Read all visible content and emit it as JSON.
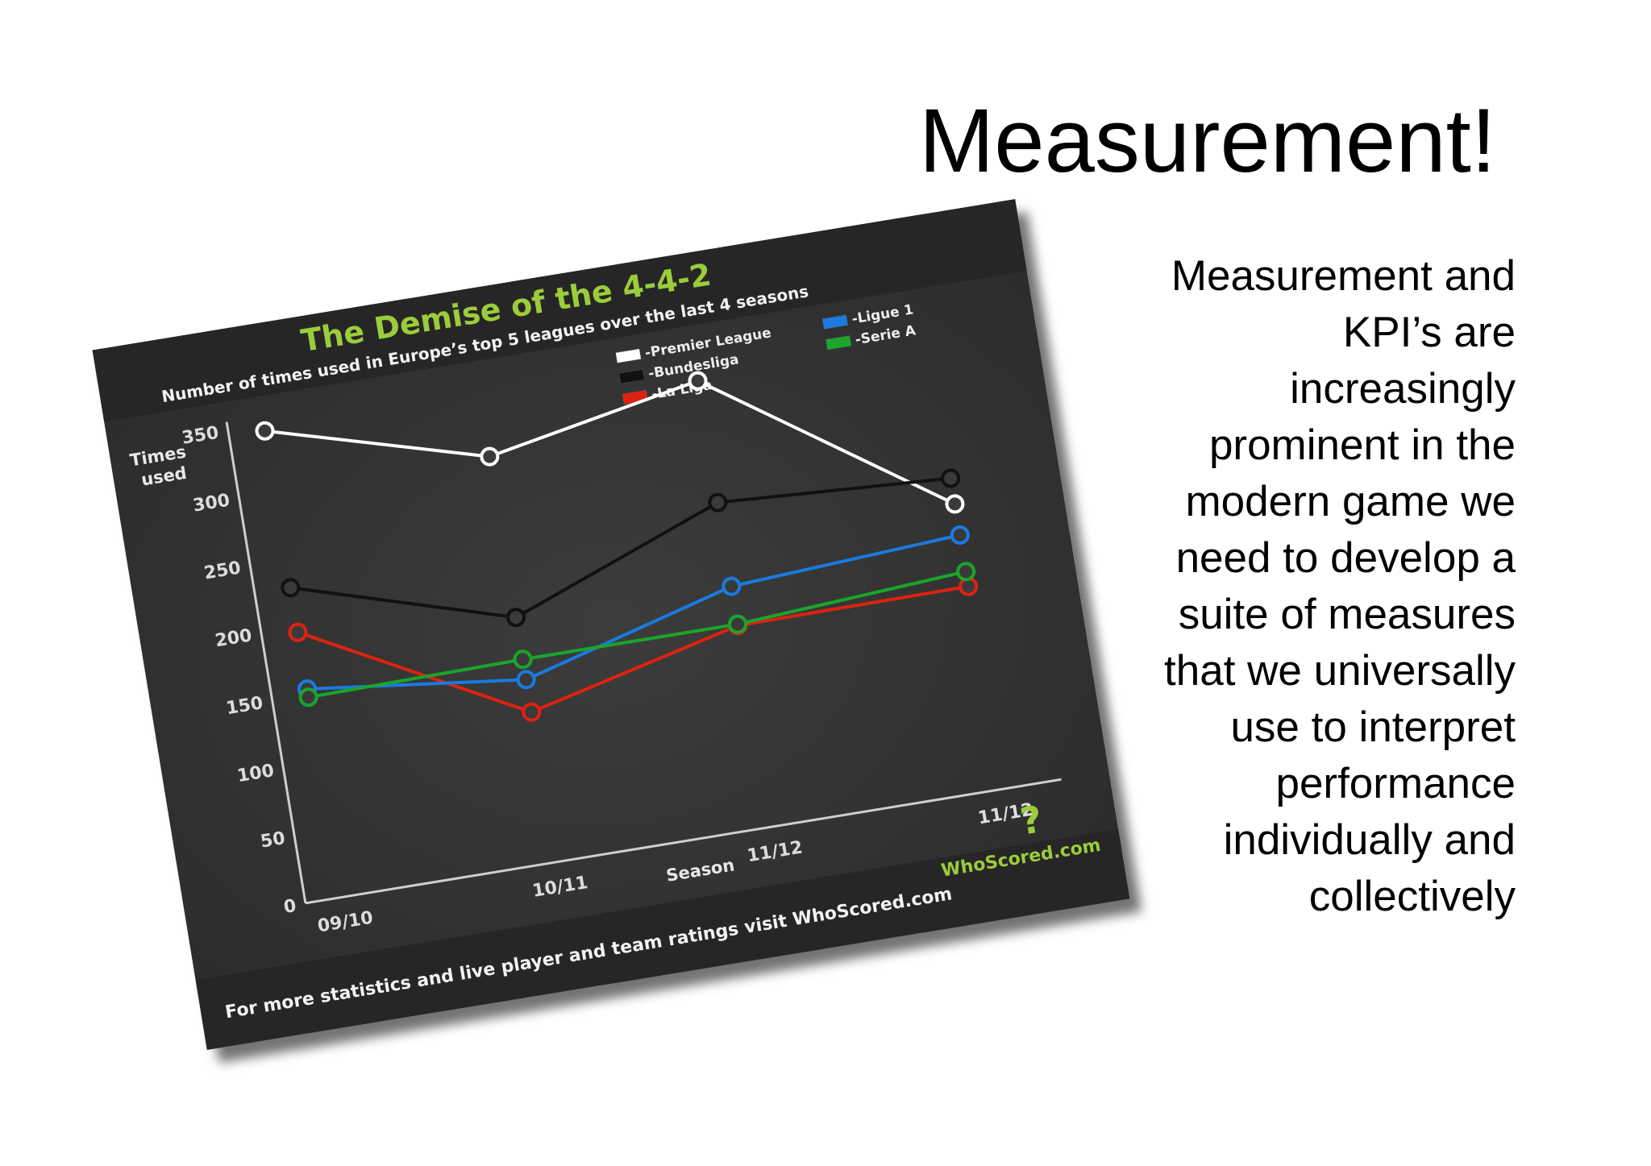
{
  "slide": {
    "title": "Measurement!",
    "body_lines": [
      "Measurement and",
      "KPI’s are",
      "increasingly",
      "prominent in the",
      "modern game we",
      "need to develop a",
      "suite of measures",
      "that we universally",
      "use to interpret",
      "performance",
      "individually and",
      "collectively"
    ]
  },
  "chart_data": {
    "type": "line",
    "title": "The Demise of the 4-4-2",
    "subtitle": "Number of times used in Europe’s top 5 leagues over the last 4 seasons",
    "ylabel": "Times used",
    "xlabel": "Season",
    "categories": [
      "09/10",
      "10/11",
      "11/12",
      "11/12"
    ],
    "ylim": [
      0,
      350
    ],
    "yticks": [
      0,
      50,
      100,
      150,
      200,
      250,
      300,
      350
    ],
    "grid": false,
    "legend_position": "top-right",
    "series": [
      {
        "name": "-Premier League",
        "color": "#ffffff",
        "values": [
          345,
          300,
          330,
          211
        ]
      },
      {
        "name": "-Bundesliga",
        "color": "#111111",
        "values": [
          229,
          181,
          240,
          230
        ]
      },
      {
        "name": "-La Liga",
        "color": "#dd2211",
        "values": [
          196,
          111,
          149,
          150
        ]
      },
      {
        "name": "-Ligue 1",
        "color": "#1a7be0",
        "values": [
          154,
          135,
          178,
          188
        ]
      },
      {
        "name": "-Serie A",
        "color": "#1aa52b",
        "values": [
          148,
          150,
          150,
          161
        ]
      }
    ],
    "footer": "For more statistics and live player and team ratings visit WhoScored.com",
    "logo_text": "WhoScored.com"
  }
}
